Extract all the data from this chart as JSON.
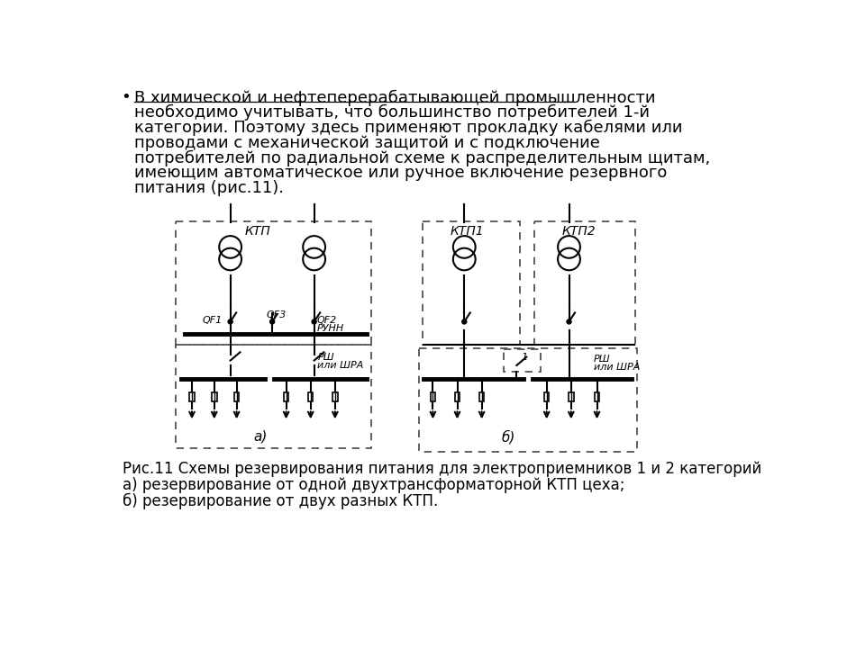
{
  "title_str": "В химической и нефтеперерабатывающей промышленности",
  "body_lines": [
    "необходимо учитывать, что большинство потребителей 1-й",
    "категории. Поэтому здесь применяют прокладку кабелями или",
    "проводами с механической защитой и с подключение",
    "потребителей по радиальной схеме к распределительным щитам,",
    "имеющим автоматическое или ручное включение резервного",
    "питания (рис.11)."
  ],
  "caption_line1": "Рис.11 Схемы резервирования питания для электроприемников 1 и 2 категорий",
  "caption_line2": "а) резервирование от одной двухтрансформаторной КТП цеха;",
  "caption_line3": "б) резервирование от двух разных КТП.",
  "label_ktp": "КТП",
  "label_ktp1": "КТП1",
  "label_ktp2": "КТП2",
  "label_qf1": "QF1",
  "label_qf2": "QF2",
  "label_qf3": "QF3",
  "label_runn": "РУНН",
  "label_rsh": "РШ",
  "label_ili_shra": "или ШРА",
  "label_a": "а)",
  "label_b": "б)",
  "label_1": "1",
  "bg_color": "#ffffff",
  "text_color": "#000000",
  "diagram_lw": 1.5,
  "bus_lw": 3.5,
  "dash_color": "#444444",
  "font_size_body": 13,
  "font_size_label": 8,
  "font_size_diag_label": 10,
  "font_size_caption": 12,
  "font_size_sub": 11
}
